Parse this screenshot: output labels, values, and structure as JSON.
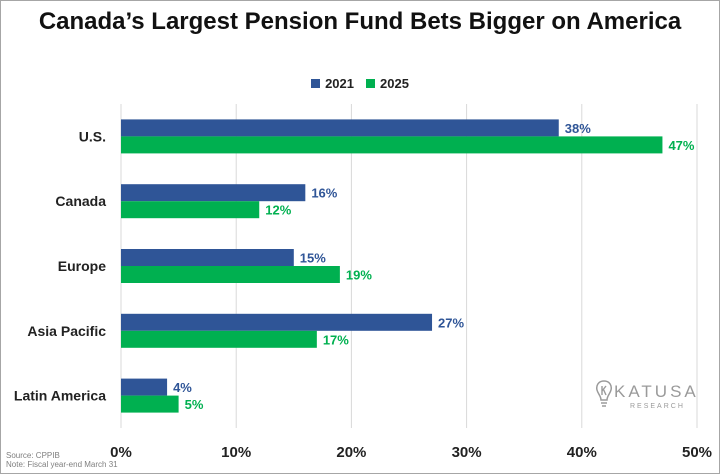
{
  "chart_data": {
    "type": "bar",
    "orientation": "horizontal",
    "title": "Canada’s Largest Pension Fund Bets Bigger on America",
    "categories": [
      "U.S.",
      "Canada",
      "Europe",
      "Asia Pacific",
      "Latin America"
    ],
    "series": [
      {
        "name": "2021",
        "color": "#2f5597",
        "values": [
          38,
          16,
          15,
          27,
          4
        ],
        "labels": [
          "38%",
          "16%",
          "15%",
          "27%",
          "4%"
        ]
      },
      {
        "name": "2025",
        "color": "#00b050",
        "values": [
          47,
          12,
          19,
          17,
          5
        ],
        "labels": [
          "47%",
          "12%",
          "19%",
          "17%",
          "5%"
        ]
      }
    ],
    "xlim": [
      0,
      50
    ],
    "xticks": [
      0,
      10,
      20,
      30,
      40,
      50
    ],
    "xtick_labels": [
      "0%",
      "10%",
      "20%",
      "30%",
      "40%",
      "50%"
    ],
    "grid": true,
    "legend_position": "top"
  },
  "footnote": {
    "source": "Source: CPPIB",
    "note": "Note: Fiscal year-end March 31"
  },
  "logo": {
    "name": "KATUSA",
    "sub": "RESEARCH",
    "icon": "lightbulb-k-icon"
  }
}
